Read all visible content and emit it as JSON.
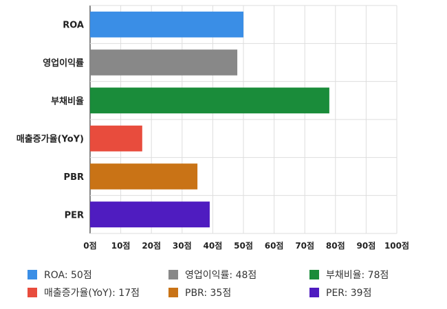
{
  "chart_data": {
    "type": "bar",
    "orientation": "horizontal",
    "categories": [
      "ROA",
      "영업이익률",
      "부채비율",
      "매출증가율(YoY)",
      "PBR",
      "PER"
    ],
    "values": [
      50,
      48,
      78,
      17,
      35,
      39
    ],
    "colors": [
      "#3a8ee6",
      "#888888",
      "#1a8c3a",
      "#e84c3d",
      "#c97316",
      "#4f1cc0"
    ],
    "xlim": [
      0,
      100
    ],
    "xticks": [
      0,
      10,
      20,
      30,
      40,
      50,
      60,
      70,
      80,
      90,
      100
    ],
    "tick_labels": [
      "0점",
      "10점",
      "20점",
      "30점",
      "40점",
      "50점",
      "60점",
      "70점",
      "80점",
      "90점",
      "100점"
    ],
    "grid": true,
    "legend_position": "bottom",
    "legend": [
      {
        "label": "ROA: 50점",
        "color": "#3a8ee6"
      },
      {
        "label": "영업이익률: 48점",
        "color": "#888888"
      },
      {
        "label": "부채비율: 78점",
        "color": "#1a8c3a"
      },
      {
        "label": "매출증가율(YoY): 17점",
        "color": "#e84c3d"
      },
      {
        "label": "PBR: 35점",
        "color": "#c97316"
      },
      {
        "label": "PER: 39점",
        "color": "#4f1cc0"
      }
    ]
  }
}
